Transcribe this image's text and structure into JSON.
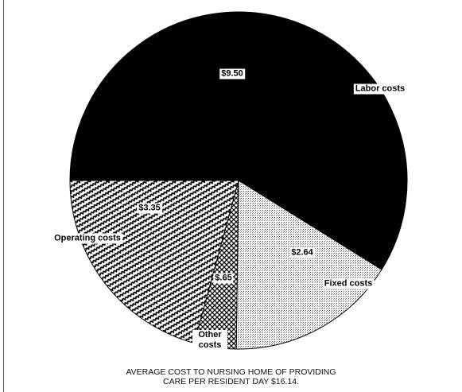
{
  "chart_data": {
    "type": "pie",
    "categories": [
      "Labor costs",
      "Fixed costs",
      "Other costs",
      "Operating costs"
    ],
    "values": [
      9.5,
      2.64,
      0.65,
      3.35
    ],
    "value_labels": [
      "$9.50",
      "$2.64",
      "$.65",
      "$3.35"
    ],
    "caption": [
      "AVERAGE COST TO NURSING HOME OF PROVIDING",
      "CARE PER RESIDENT DAY $16.14."
    ]
  }
}
